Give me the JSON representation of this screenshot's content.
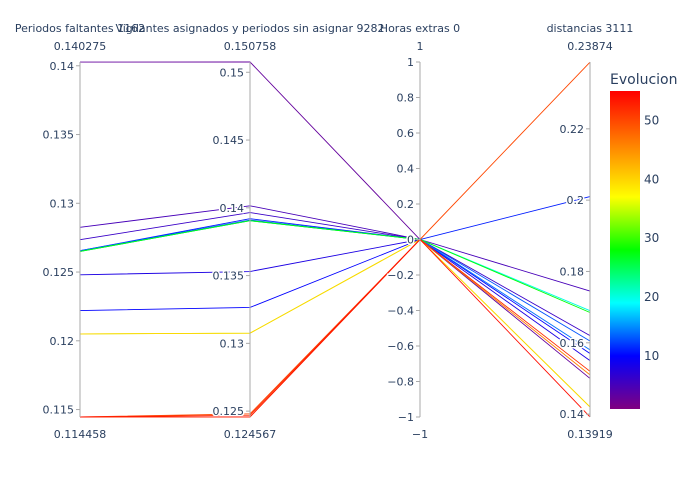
{
  "chart_data": {
    "type": "parallel_coordinates",
    "colorscale_title": "Evolucion",
    "colorscale": [
      "#800080",
      "#0000ff",
      "#00ffff",
      "#00ff00",
      "#ffff00",
      "#ff8000",
      "#ff0000"
    ],
    "color_range": [
      1,
      55
    ],
    "colorbar_ticks": [
      10,
      20,
      30,
      40,
      50
    ],
    "dimensions": [
      {
        "label": "Periodos faltantes 1162",
        "range": [
          0.114458,
          0.140275
        ],
        "range_min_label": "0.114458",
        "range_max_label": "0.140275",
        "ticks": [
          0.115,
          0.12,
          0.125,
          0.13,
          0.135,
          0.14
        ],
        "tick_labels": [
          "0.115",
          "0.12",
          "0.125",
          "0.13",
          "0.135",
          "0.14"
        ]
      },
      {
        "label": "Vigilantes asignados y periodos sin asignar 9282",
        "range": [
          0.124567,
          0.150758
        ],
        "range_min_label": "0.124567",
        "range_max_label": "0.150758",
        "ticks": [
          0.125,
          0.13,
          0.135,
          0.14,
          0.145,
          0.15
        ],
        "tick_labels": [
          "0.125",
          "0.13",
          "0.135",
          "0.14",
          "0.145",
          "0.15"
        ]
      },
      {
        "label": "Horas extras 0",
        "range": [
          -1,
          1
        ],
        "range_min_label": "−1",
        "range_max_label": "1",
        "ticks": [
          -1,
          -0.8,
          -0.6,
          -0.4,
          -0.2,
          0,
          0.2,
          0.4,
          0.6,
          0.8,
          1
        ],
        "tick_labels": [
          "−1",
          "−0.8",
          "−0.6",
          "−0.4",
          "−0.2",
          "0",
          "0.2",
          "0.4",
          "0.6",
          "0.8",
          "1"
        ]
      },
      {
        "label": "distancias 3111",
        "range": [
          0.13919,
          0.23874
        ],
        "range_min_label": "0.13919",
        "range_max_label": "0.23874",
        "ticks": [
          0.14,
          0.16,
          0.18,
          0.2,
          0.22
        ],
        "tick_labels": [
          "0.14",
          "0.16",
          "0.18",
          "0.2",
          "0.22"
        ]
      }
    ],
    "lines": [
      {
        "evolucion": 3,
        "values": [
          0.14027,
          0.15076,
          0,
          0.15
        ]
      },
      {
        "evolucion": 5,
        "values": [
          0.12825,
          0.14015,
          0,
          0.1745
        ]
      },
      {
        "evolucion": 6,
        "values": [
          0.12735,
          0.13965,
          0,
          0.162
        ]
      },
      {
        "evolucion": 8,
        "values": [
          0.1248,
          0.1353,
          0,
          0.155
        ]
      },
      {
        "evolucion": 10,
        "values": [
          0.1222,
          0.13265,
          0,
          0.157
        ]
      },
      {
        "evolucion": 11,
        "values": [
          0.12655,
          0.1392,
          0,
          0.201
        ]
      },
      {
        "evolucion": 13,
        "values": [
          0.12655,
          0.1391,
          0,
          0.1605
        ]
      },
      {
        "evolucion": 14,
        "values": [
          0.1265,
          0.13905,
          0,
          0.158
        ]
      },
      {
        "evolucion": 20,
        "values": [
          0.1265,
          0.13905,
          0,
          0.169
        ]
      },
      {
        "evolucion": 28,
        "values": [
          0.1265,
          0.13905,
          0,
          0.1685
        ]
      },
      {
        "evolucion": 35,
        "values": [
          0.1205,
          0.13075,
          0,
          0.142
        ]
      },
      {
        "evolucion": 40,
        "values": [
          0.1205,
          0.13075,
          0,
          0.142
        ]
      },
      {
        "evolucion": 46,
        "values": [
          0.11446,
          0.12457,
          0,
          0.151
        ]
      },
      {
        "evolucion": 50,
        "values": [
          0.11446,
          0.1248,
          0,
          0.2387
        ]
      },
      {
        "evolucion": 52,
        "values": [
          0.11446,
          0.1247,
          0,
          0.152
        ]
      },
      {
        "evolucion": 54,
        "values": [
          0.11446,
          0.12457,
          0,
          0.1392
        ]
      }
    ]
  }
}
